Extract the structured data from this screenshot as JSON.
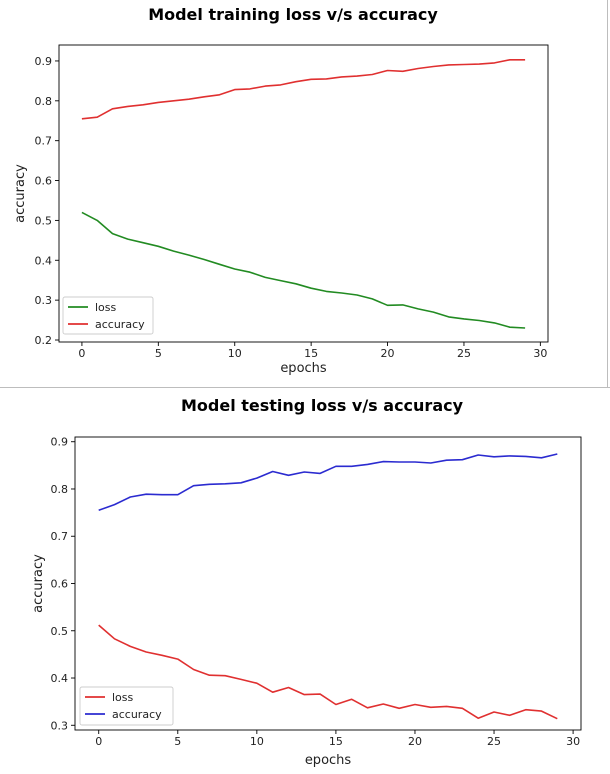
{
  "chart_data": [
    {
      "type": "line",
      "title": "Model training loss v/s accuracy",
      "xlabel": "epochs",
      "ylabel": "accuracy",
      "xlim": [
        -1.5,
        30.5
      ],
      "ylim": [
        0.195,
        0.94
      ],
      "xticks": [
        0,
        5,
        10,
        15,
        20,
        25,
        30
      ],
      "yticks": [
        0.2,
        0.3,
        0.4,
        0.5,
        0.6,
        0.7,
        0.8,
        0.9
      ],
      "legend": "lower-left",
      "grid": false,
      "x": [
        0,
        1,
        2,
        3,
        4,
        5,
        6,
        7,
        8,
        9,
        10,
        11,
        12,
        13,
        14,
        15,
        16,
        17,
        18,
        19,
        20,
        21,
        22,
        23,
        24,
        25,
        26,
        27,
        28,
        29
      ],
      "series": [
        {
          "name": "loss",
          "color": "#228b22",
          "values": [
            0.52,
            0.5,
            0.467,
            0.453,
            0.444,
            0.435,
            0.423,
            0.413,
            0.402,
            0.39,
            0.378,
            0.37,
            0.357,
            0.349,
            0.341,
            0.33,
            0.322,
            0.318,
            0.313,
            0.303,
            0.287,
            0.288,
            0.278,
            0.27,
            0.258,
            0.253,
            0.249,
            0.243,
            0.232,
            0.23
          ]
        },
        {
          "name": "accuracy",
          "color": "#e03030",
          "values": [
            0.755,
            0.759,
            0.78,
            0.786,
            0.79,
            0.796,
            0.8,
            0.804,
            0.81,
            0.815,
            0.828,
            0.83,
            0.837,
            0.84,
            0.848,
            0.854,
            0.855,
            0.86,
            0.862,
            0.866,
            0.876,
            0.874,
            0.881,
            0.886,
            0.89,
            0.891,
            0.892,
            0.895,
            0.903,
            0.903
          ]
        }
      ]
    },
    {
      "type": "line",
      "title": "Model testing loss v/s accuracy",
      "xlabel": "epochs",
      "ylabel": "accuracy",
      "xlim": [
        -1.5,
        30.5
      ],
      "ylim": [
        0.29,
        0.91
      ],
      "xticks": [
        0,
        5,
        10,
        15,
        20,
        25,
        30
      ],
      "yticks": [
        0.3,
        0.4,
        0.5,
        0.6,
        0.7,
        0.8,
        0.9
      ],
      "legend": "lower-left",
      "grid": false,
      "x": [
        0,
        1,
        2,
        3,
        4,
        5,
        6,
        7,
        8,
        9,
        10,
        11,
        12,
        13,
        14,
        15,
        16,
        17,
        18,
        19,
        20,
        21,
        22,
        23,
        24,
        25,
        26,
        27,
        28,
        29
      ],
      "series": [
        {
          "name": "loss",
          "color": "#e03030",
          "values": [
            0.512,
            0.483,
            0.467,
            0.455,
            0.448,
            0.44,
            0.418,
            0.406,
            0.405,
            0.397,
            0.389,
            0.37,
            0.38,
            0.365,
            0.366,
            0.344,
            0.355,
            0.337,
            0.345,
            0.336,
            0.344,
            0.338,
            0.34,
            0.336,
            0.315,
            0.328,
            0.321,
            0.333,
            0.33,
            0.314
          ]
        },
        {
          "name": "accuracy",
          "color": "#2b2bd0",
          "values": [
            0.755,
            0.767,
            0.783,
            0.789,
            0.788,
            0.788,
            0.807,
            0.81,
            0.811,
            0.813,
            0.823,
            0.837,
            0.829,
            0.836,
            0.833,
            0.848,
            0.848,
            0.852,
            0.858,
            0.857,
            0.857,
            0.855,
            0.861,
            0.862,
            0.872,
            0.868,
            0.87,
            0.869,
            0.866,
            0.874
          ]
        }
      ]
    }
  ]
}
